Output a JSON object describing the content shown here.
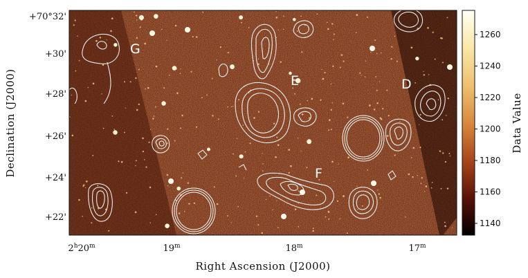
{
  "image": {
    "x_axis_title": "Right Ascension (J2000)",
    "y_axis_title": "Declination (J2000)",
    "x_ticks": [
      {
        "major": "2",
        "sup1": "h",
        "minor": "20",
        "sup2": "m"
      },
      {
        "major": "19",
        "sup1": "m",
        "minor": "",
        "sup2": ""
      },
      {
        "major": "18",
        "sup1": "m",
        "minor": "",
        "sup2": ""
      },
      {
        "major": "17",
        "sup1": "m",
        "minor": "",
        "sup2": ""
      }
    ],
    "y_ticks": [
      "+70°32'",
      "+30'",
      "+28'",
      "+26'",
      "+24'",
      "+22'"
    ],
    "source_labels": [
      "G",
      "E",
      "D",
      "F"
    ],
    "colorbar": {
      "title": "Data Value",
      "ticks": [
        "1260",
        "1240",
        "1220",
        "1200",
        "1180",
        "1160",
        "1140"
      ],
      "colormap": [
        "#fffff4",
        "#fbe7a8",
        "#eec070",
        "#d98a3e",
        "#a9461c",
        "#5a1306",
        "#000000"
      ]
    },
    "contour_color": "#ffffff"
  }
}
